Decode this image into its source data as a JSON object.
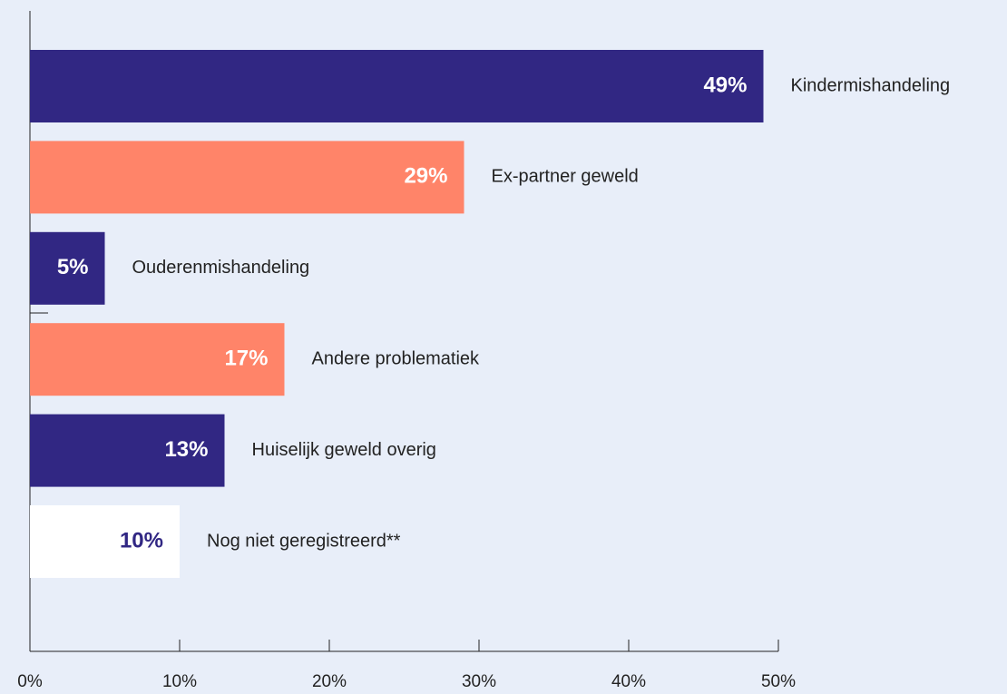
{
  "chart_data": {
    "type": "barh",
    "categories": [
      "Kindermishandeling",
      "Ex-partner geweld",
      "Ouderenmishandeling",
      "Andere problematiek",
      "Huiselijk geweld overig",
      "Nog niet geregistreerd**"
    ],
    "values": [
      49,
      29,
      5,
      17,
      13,
      10
    ],
    "value_labels": [
      "49%",
      "29%",
      "5%",
      "17%",
      "13%",
      "10%"
    ],
    "colors": [
      "#312783",
      "#ff8469",
      "#312783",
      "#ff8469",
      "#312783",
      "#ffffff"
    ],
    "label_colors": [
      "#ffffff",
      "#ffffff",
      "#ffffff",
      "#ffffff",
      "#ffffff",
      "#312783"
    ],
    "xlim": [
      0,
      50
    ],
    "xticks": [
      {
        "value": 0,
        "label": "0%"
      },
      {
        "value": 10,
        "label": "10%"
      },
      {
        "value": 20,
        "label": "20%"
      },
      {
        "value": 30,
        "label": "30%"
      },
      {
        "value": 40,
        "label": "40%"
      },
      {
        "value": 50,
        "label": "50%"
      }
    ]
  }
}
